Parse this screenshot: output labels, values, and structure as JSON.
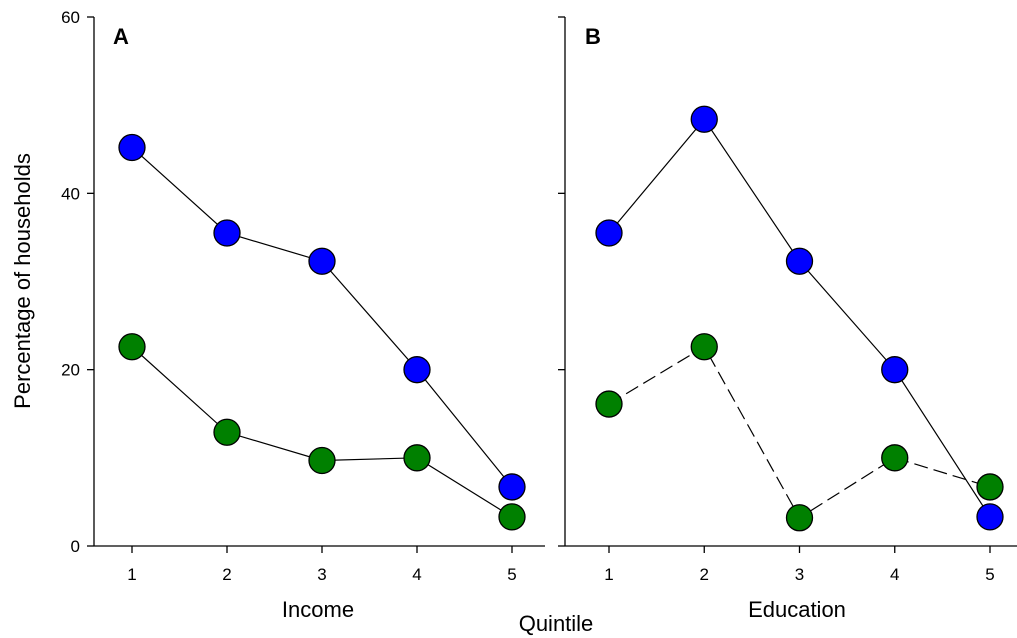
{
  "chart_data": [
    {
      "type": "line",
      "panel_label": "A",
      "xlabel": "Income",
      "ylabel": "Percentage of households",
      "x": [
        1,
        2,
        3,
        4,
        5
      ],
      "ylim": [
        0,
        60
      ],
      "yticks": [
        0,
        20,
        40,
        60
      ],
      "series": [
        {
          "values": [
            45.2,
            35.5,
            32.3,
            20.0,
            6.7
          ],
          "color": "#0000ff",
          "line_style": "solid"
        },
        {
          "values": [
            22.6,
            12.9,
            9.7,
            10.0,
            3.3
          ],
          "color": "#008000",
          "line_style": "solid"
        }
      ]
    },
    {
      "type": "line",
      "panel_label": "B",
      "xlabel": "Education",
      "x": [
        1,
        2,
        3,
        4,
        5
      ],
      "ylim": [
        0,
        60
      ],
      "yticks": [
        0,
        20,
        40,
        60
      ],
      "series": [
        {
          "values": [
            35.5,
            48.4,
            32.3,
            20.0,
            3.3
          ],
          "color": "#0000ff",
          "line_style": "solid"
        },
        {
          "values": [
            16.1,
            22.6,
            3.2,
            10.0,
            6.7
          ],
          "color": "#008000",
          "line_style": "dashed"
        }
      ]
    }
  ],
  "shared_xlabel": "Quintile"
}
